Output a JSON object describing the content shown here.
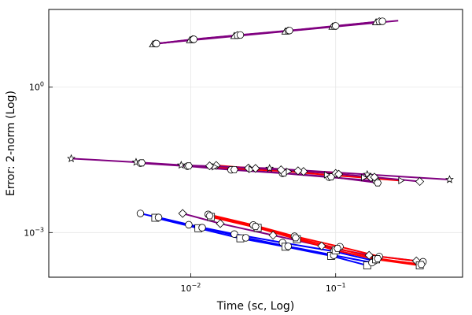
{
  "chart_data": {
    "type": "line",
    "title": "",
    "xlabel": "Time (sc, Log)",
    "ylabel": "Error: 2-norm (Log)",
    "xscale": "log",
    "yscale": "log",
    "xlim": [
      0.00105,
      0.75
    ],
    "ylim": [
      0.00012,
      40
    ],
    "grid": true,
    "legend": "none",
    "x_ticks": [
      {
        "value": 0.01,
        "base": "10",
        "exp": "−2"
      },
      {
        "value": 0.1,
        "base": "10",
        "exp": "−1"
      }
    ],
    "y_ticks": [
      {
        "value": 0.001,
        "base": "10",
        "exp": "−3"
      },
      {
        "value": 1,
        "base": "10",
        "exp": "0"
      }
    ],
    "series": [
      {
        "color": "#800080",
        "marker": "triangle",
        "points": [
          [
            0.0055,
            7.7
          ],
          [
            0.0099,
            9.4
          ],
          [
            0.02,
            11.5
          ],
          [
            0.045,
            14.2
          ],
          [
            0.095,
            17.8
          ],
          [
            0.19,
            22.0
          ]
        ]
      },
      {
        "color": "#800080",
        "marker": "pentagon",
        "points": [
          [
            0.0057,
            7.8
          ],
          [
            0.0103,
            9.6
          ],
          [
            0.021,
            11.7
          ],
          [
            0.047,
            14.5
          ],
          [
            0.098,
            18.0
          ],
          [
            0.2,
            22.5
          ]
        ]
      },
      {
        "color": "#800080",
        "marker": "circle",
        "points": [
          [
            0.0058,
            7.9
          ],
          [
            0.0105,
            9.7
          ],
          [
            0.022,
            11.9
          ],
          [
            0.048,
            14.7
          ],
          [
            0.1,
            18.3
          ],
          [
            0.21,
            22.8
          ]
        ]
      },
      {
        "color": "#800080",
        "marker": "none",
        "points": [
          [
            0.006,
            8.0
          ],
          [
            0.27,
            23.5
          ]
        ]
      },
      {
        "color": "#800080",
        "marker": "star",
        "points": [
          [
            0.0015,
            0.0336
          ],
          [
            0.0042,
            0.0283
          ],
          [
            0.0086,
            0.0246
          ],
          [
            0.035,
            0.0211
          ],
          [
            0.165,
            0.0158
          ],
          [
            0.61,
            0.0124
          ]
        ]
      },
      {
        "color": "#800080",
        "marker": "circle",
        "points": [
          [
            0.0045,
            0.027
          ],
          [
            0.0095,
            0.0234
          ],
          [
            0.019,
            0.0197
          ],
          [
            0.043,
            0.0167
          ],
          [
            0.09,
            0.0139
          ],
          [
            0.19,
            0.0116
          ]
        ]
      },
      {
        "color": "#800080",
        "marker": "hexagon",
        "points": [
          [
            0.0046,
            0.0274
          ],
          [
            0.0097,
            0.0237
          ],
          [
            0.02,
            0.0199
          ],
          [
            0.044,
            0.0169
          ],
          [
            0.093,
            0.0141
          ],
          [
            0.195,
            0.0106
          ]
        ]
      },
      {
        "color": "#ff0000",
        "marker": "diamond",
        "points": [
          [
            0.015,
            0.0243
          ],
          [
            0.025,
            0.0214
          ],
          [
            0.042,
            0.0197
          ],
          [
            0.06,
            0.0182
          ],
          [
            0.1,
            0.0166
          ],
          [
            0.175,
            0.0136
          ]
        ]
      },
      {
        "color": "#ff0000",
        "marker": "right-triangle",
        "points": [
          [
            0.0145,
            0.0227
          ],
          [
            0.026,
            0.0201
          ],
          [
            0.047,
            0.0183
          ],
          [
            0.086,
            0.0155
          ],
          [
            0.155,
            0.0136
          ],
          [
            0.28,
            0.0118
          ]
        ]
      },
      {
        "color": "#800080",
        "marker": "diamond",
        "points": [
          [
            0.0135,
            0.0238
          ],
          [
            0.028,
            0.0211
          ],
          [
            0.055,
            0.0188
          ],
          [
            0.105,
            0.016
          ],
          [
            0.185,
            0.0139
          ],
          [
            0.38,
            0.0113
          ]
        ]
      },
      {
        "color": "#0000ff",
        "marker": "circle",
        "points": [
          [
            0.0045,
            0.00248
          ],
          [
            0.0097,
            0.00145
          ],
          [
            0.02,
            0.00093
          ],
          [
            0.043,
            0.00062
          ],
          [
            0.097,
            0.00041
          ],
          [
            0.185,
            0.00026
          ]
        ]
      },
      {
        "color": "#0000ff",
        "marker": "square",
        "points": [
          [
            0.0057,
            0.00202
          ],
          [
            0.0113,
            0.00123
          ],
          [
            0.022,
            0.00076
          ],
          [
            0.045,
            0.00051
          ],
          [
            0.093,
            0.00033
          ],
          [
            0.165,
            0.00021
          ]
        ]
      },
      {
        "color": "#0000ff",
        "marker": "circle",
        "points": [
          [
            0.006,
            0.00205
          ],
          [
            0.012,
            0.00126
          ],
          [
            0.024,
            0.00078
          ],
          [
            0.047,
            0.00052
          ],
          [
            0.097,
            0.00034
          ],
          [
            0.178,
            0.00024
          ]
        ]
      },
      {
        "color": "#800080",
        "marker": "diamond",
        "points": [
          [
            0.0088,
            0.00248
          ],
          [
            0.016,
            0.00153
          ],
          [
            0.037,
            0.00088
          ],
          [
            0.08,
            0.00053
          ],
          [
            0.17,
            0.00034
          ],
          [
            0.36,
            0.00026
          ]
        ]
      },
      {
        "color": "#ff0000",
        "marker": "circle",
        "points": [
          [
            0.0132,
            0.00237
          ],
          [
            0.027,
            0.00143
          ],
          [
            0.052,
            0.00084
          ],
          [
            0.107,
            0.00051
          ],
          [
            0.2,
            0.00032
          ],
          [
            0.4,
            0.00025
          ]
        ]
      },
      {
        "color": "#ff0000",
        "marker": "square",
        "points": [
          [
            0.0138,
            0.0021
          ],
          [
            0.029,
            0.00125
          ],
          [
            0.054,
            0.00073
          ],
          [
            0.1,
            0.00043
          ],
          [
            0.19,
            0.00028
          ],
          [
            0.38,
            0.00021
          ]
        ]
      },
      {
        "color": "#ff0000",
        "marker": "hexagon",
        "points": [
          [
            0.0135,
            0.00222
          ],
          [
            0.028,
            0.00133
          ],
          [
            0.053,
            0.00078
          ],
          [
            0.103,
            0.00047
          ],
          [
            0.195,
            0.00029
          ],
          [
            0.39,
            0.00022
          ]
        ]
      }
    ]
  }
}
